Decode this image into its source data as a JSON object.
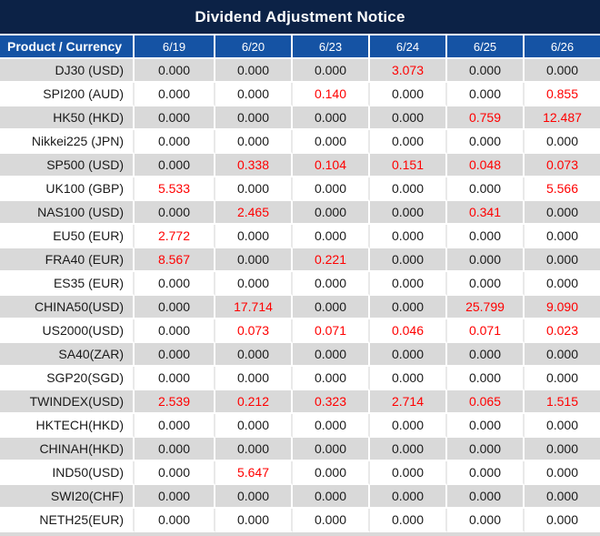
{
  "title": "Dividend Adjustment Notice",
  "table": {
    "columns": [
      "Product / Currency",
      "6/19",
      "6/20",
      "6/23",
      "6/24",
      "6/25",
      "6/26"
    ],
    "rows": [
      {
        "product": "DJ30 (USD)",
        "values": [
          "0.000",
          "0.000",
          "0.000",
          "3.073",
          "0.000",
          "0.000"
        ]
      },
      {
        "product": "SPI200 (AUD)",
        "values": [
          "0.000",
          "0.000",
          "0.140",
          "0.000",
          "0.000",
          "0.855"
        ]
      },
      {
        "product": "HK50 (HKD)",
        "values": [
          "0.000",
          "0.000",
          "0.000",
          "0.000",
          "0.759",
          "12.487"
        ]
      },
      {
        "product": "Nikkei225 (JPN)",
        "values": [
          "0.000",
          "0.000",
          "0.000",
          "0.000",
          "0.000",
          "0.000"
        ]
      },
      {
        "product": "SP500 (USD)",
        "values": [
          "0.000",
          "0.338",
          "0.104",
          "0.151",
          "0.048",
          "0.073"
        ]
      },
      {
        "product": "UK100 (GBP)",
        "values": [
          "5.533",
          "0.000",
          "0.000",
          "0.000",
          "0.000",
          "5.566"
        ]
      },
      {
        "product": "NAS100 (USD)",
        "values": [
          "0.000",
          "2.465",
          "0.000",
          "0.000",
          "0.341",
          "0.000"
        ]
      },
      {
        "product": "EU50 (EUR)",
        "values": [
          "2.772",
          "0.000",
          "0.000",
          "0.000",
          "0.000",
          "0.000"
        ]
      },
      {
        "product": "FRA40 (EUR)",
        "values": [
          "8.567",
          "0.000",
          "0.221",
          "0.000",
          "0.000",
          "0.000"
        ]
      },
      {
        "product": "ES35 (EUR)",
        "values": [
          "0.000",
          "0.000",
          "0.000",
          "0.000",
          "0.000",
          "0.000"
        ]
      },
      {
        "product": "CHINA50(USD)",
        "values": [
          "0.000",
          "17.714",
          "0.000",
          "0.000",
          "25.799",
          "9.090"
        ]
      },
      {
        "product": "US2000(USD)",
        "values": [
          "0.000",
          "0.073",
          "0.071",
          "0.046",
          "0.071",
          "0.023"
        ]
      },
      {
        "product": "SA40(ZAR)",
        "values": [
          "0.000",
          "0.000",
          "0.000",
          "0.000",
          "0.000",
          "0.000"
        ]
      },
      {
        "product": "SGP20(SGD)",
        "values": [
          "0.000",
          "0.000",
          "0.000",
          "0.000",
          "0.000",
          "0.000"
        ]
      },
      {
        "product": "TWINDEX(USD)",
        "values": [
          "2.539",
          "0.212",
          "0.323",
          "2.714",
          "0.065",
          "1.515"
        ]
      },
      {
        "product": "HKTECH(HKD)",
        "values": [
          "0.000",
          "0.000",
          "0.000",
          "0.000",
          "0.000",
          "0.000"
        ]
      },
      {
        "product": "CHINAH(HKD)",
        "values": [
          "0.000",
          "0.000",
          "0.000",
          "0.000",
          "0.000",
          "0.000"
        ]
      },
      {
        "product": "IND50(USD)",
        "values": [
          "0.000",
          "5.647",
          "0.000",
          "0.000",
          "0.000",
          "0.000"
        ]
      },
      {
        "product": "SWI20(CHF)",
        "values": [
          "0.000",
          "0.000",
          "0.000",
          "0.000",
          "0.000",
          "0.000"
        ]
      },
      {
        "product": "NETH25(EUR)",
        "values": [
          "0.000",
          "0.000",
          "0.000",
          "0.000",
          "0.000",
          "0.000"
        ]
      }
    ],
    "zero_value": "0.000"
  },
  "colors": {
    "title_bar_bg": "#0C2246",
    "header_bg": "#1553A4",
    "stripe_gray": "#D9D9D9",
    "value_zero_text": "#1A1A1A",
    "value_nonzero_text": "#FF0000",
    "separator_light": "#E9E9E9",
    "separator_white": "#FFFFFF"
  }
}
